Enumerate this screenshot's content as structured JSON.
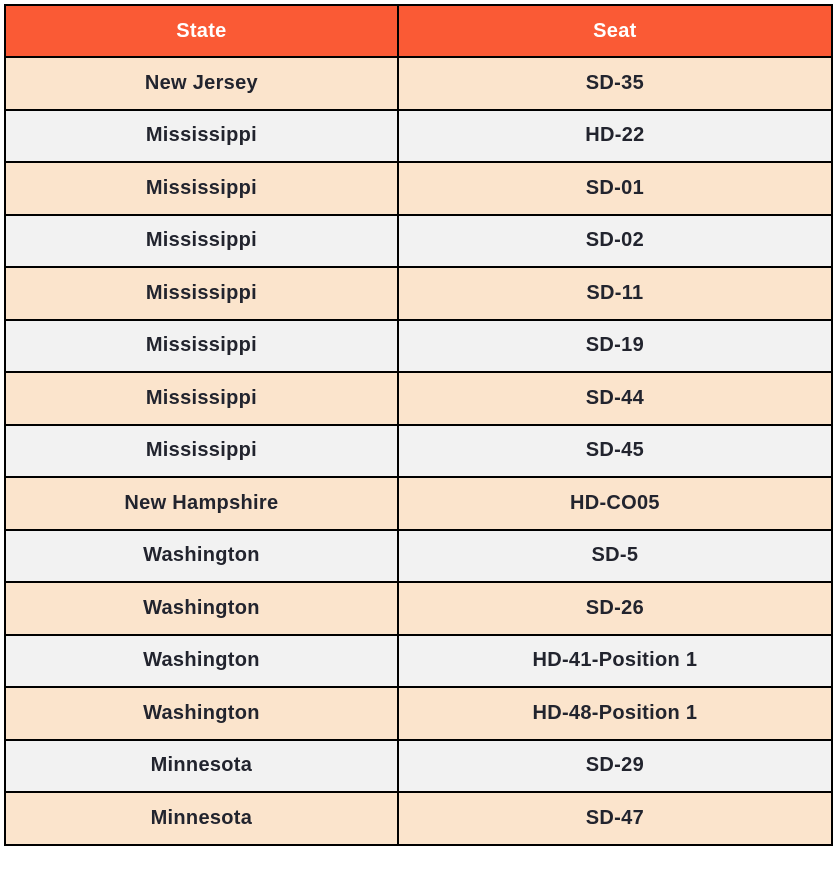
{
  "chart_data": {
    "type": "table",
    "columns": [
      "State",
      "Seat"
    ],
    "rows": [
      [
        "New Jersey",
        "SD-35"
      ],
      [
        "Mississippi",
        "HD-22"
      ],
      [
        "Mississippi",
        "SD-01"
      ],
      [
        "Mississippi",
        "SD-02"
      ],
      [
        "Mississippi",
        "SD-11"
      ],
      [
        "Mississippi",
        "SD-19"
      ],
      [
        "Mississippi",
        "SD-44"
      ],
      [
        "Mississippi",
        "SD-45"
      ],
      [
        "New Hampshire",
        "HD-CO05"
      ],
      [
        "Washington",
        "SD-5"
      ],
      [
        "Washington",
        "SD-26"
      ],
      [
        "Washington",
        "HD-41-Position 1"
      ],
      [
        "Washington",
        "HD-48-Position 1"
      ],
      [
        "Minnesota",
        "SD-29"
      ],
      [
        "Minnesota",
        "SD-47"
      ]
    ],
    "layout": {
      "header_position": "top",
      "text_alignment": "center",
      "row_striping": "odd-peach-even-gray"
    }
  },
  "colors": {
    "header_bg": "#FA5A35",
    "header_text": "#FFFFFF",
    "row_odd_bg": "#FBE4CC",
    "row_even_bg": "#F2F2F2",
    "border": "#000000",
    "cell_text": "#22242E"
  }
}
